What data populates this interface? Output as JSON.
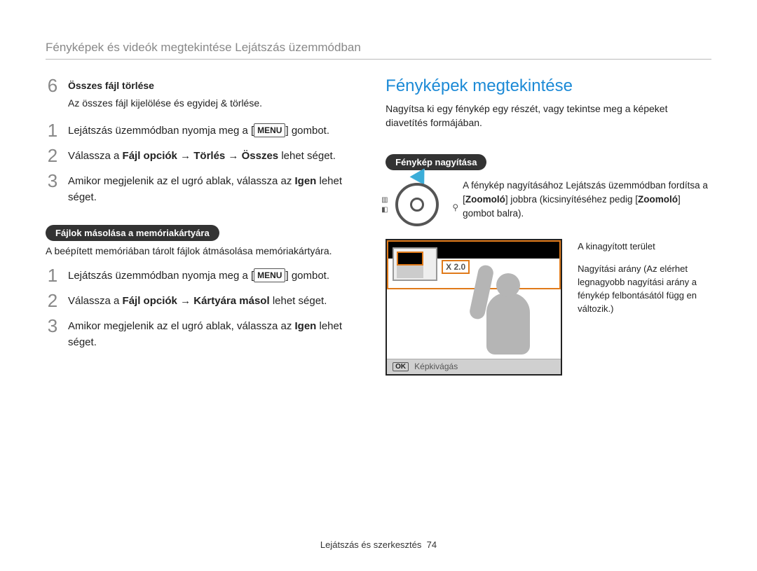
{
  "colors": {
    "accent_blue": "#1c8ad6",
    "accent_orange": "#e07a1a",
    "pill_bg": "#333333",
    "text": "#222222",
    "muted": "#888888"
  },
  "header": {
    "title": "Fényképek és videók megtekintése Lejátszás üzemmódban"
  },
  "left": {
    "step6": {
      "num": "6",
      "title": "Összes fájl törlése",
      "sub": "Az összes fájl kijelölése és egyidej & törlése."
    },
    "listA": {
      "s1": {
        "num": "1",
        "pre": "Lejátszás üzemmódban nyomja meg a [",
        "menu": "MENU",
        "post": "] gombot."
      },
      "s2": {
        "num": "2",
        "pre": "Válassza a ",
        "b1": "Fájl opciók",
        "arrow1": " → ",
        "b2": "Törlés",
        "arrow2": " → ",
        "b3": "Összes",
        "post": " lehet  séget."
      },
      "s3": {
        "num": "3",
        "pre": "Amikor megjelenik az el  ugró ablak, válassza az ",
        "b": "Igen",
        "post": " lehet  séget."
      }
    },
    "pill": "Fájlok másolása a memóriakártyára",
    "pill_sub": "A beépített memóriában tárolt fájlok átmásolása memóriakártyára.",
    "listB": {
      "s1": {
        "num": "1",
        "pre": "Lejátszás üzemmódban nyomja meg a [",
        "menu": "MENU",
        "post": "] gombot."
      },
      "s2": {
        "num": "2",
        "pre": "Válassza a ",
        "b1": "Fájl opciók",
        "arrow": " → ",
        "b2": "Kártyára másol",
        "post": " lehet  séget."
      },
      "s3": {
        "num": "3",
        "pre": "Amikor megjelenik az el  ugró ablak, válassza az ",
        "b": "Igen",
        "post": " lehet  séget."
      }
    }
  },
  "right": {
    "title": "Fényképek megtekintése",
    "intro": "Nagyítsa ki egy fénykép egy részét, vagy tekintse meg a képeket diavetítés formájában.",
    "pill": "Fénykép nagyítása",
    "zoom_desc": {
      "pre": "A fénykép nagyításához Lejátszás üzemmódban fordítsa a [",
      "b1": "Zoomoló",
      "mid": "] jobbra (kicsinyítéséhez pedig [",
      "b2": "Zoomoló",
      "post": "] gombot balra)."
    },
    "screen": {
      "zoom_badge": "X 2.0",
      "bottom_ok": "OK",
      "bottom_label": "Képkivágás"
    },
    "callout1": "A kinagyított terület",
    "callout2": "Nagyítási arány (Az elérhet  legnagyobb nagyítási arány a fénykép felbontásától függ  en változik.)"
  },
  "footer": {
    "section": "Lejátszás és szerkesztés",
    "page": "74"
  }
}
